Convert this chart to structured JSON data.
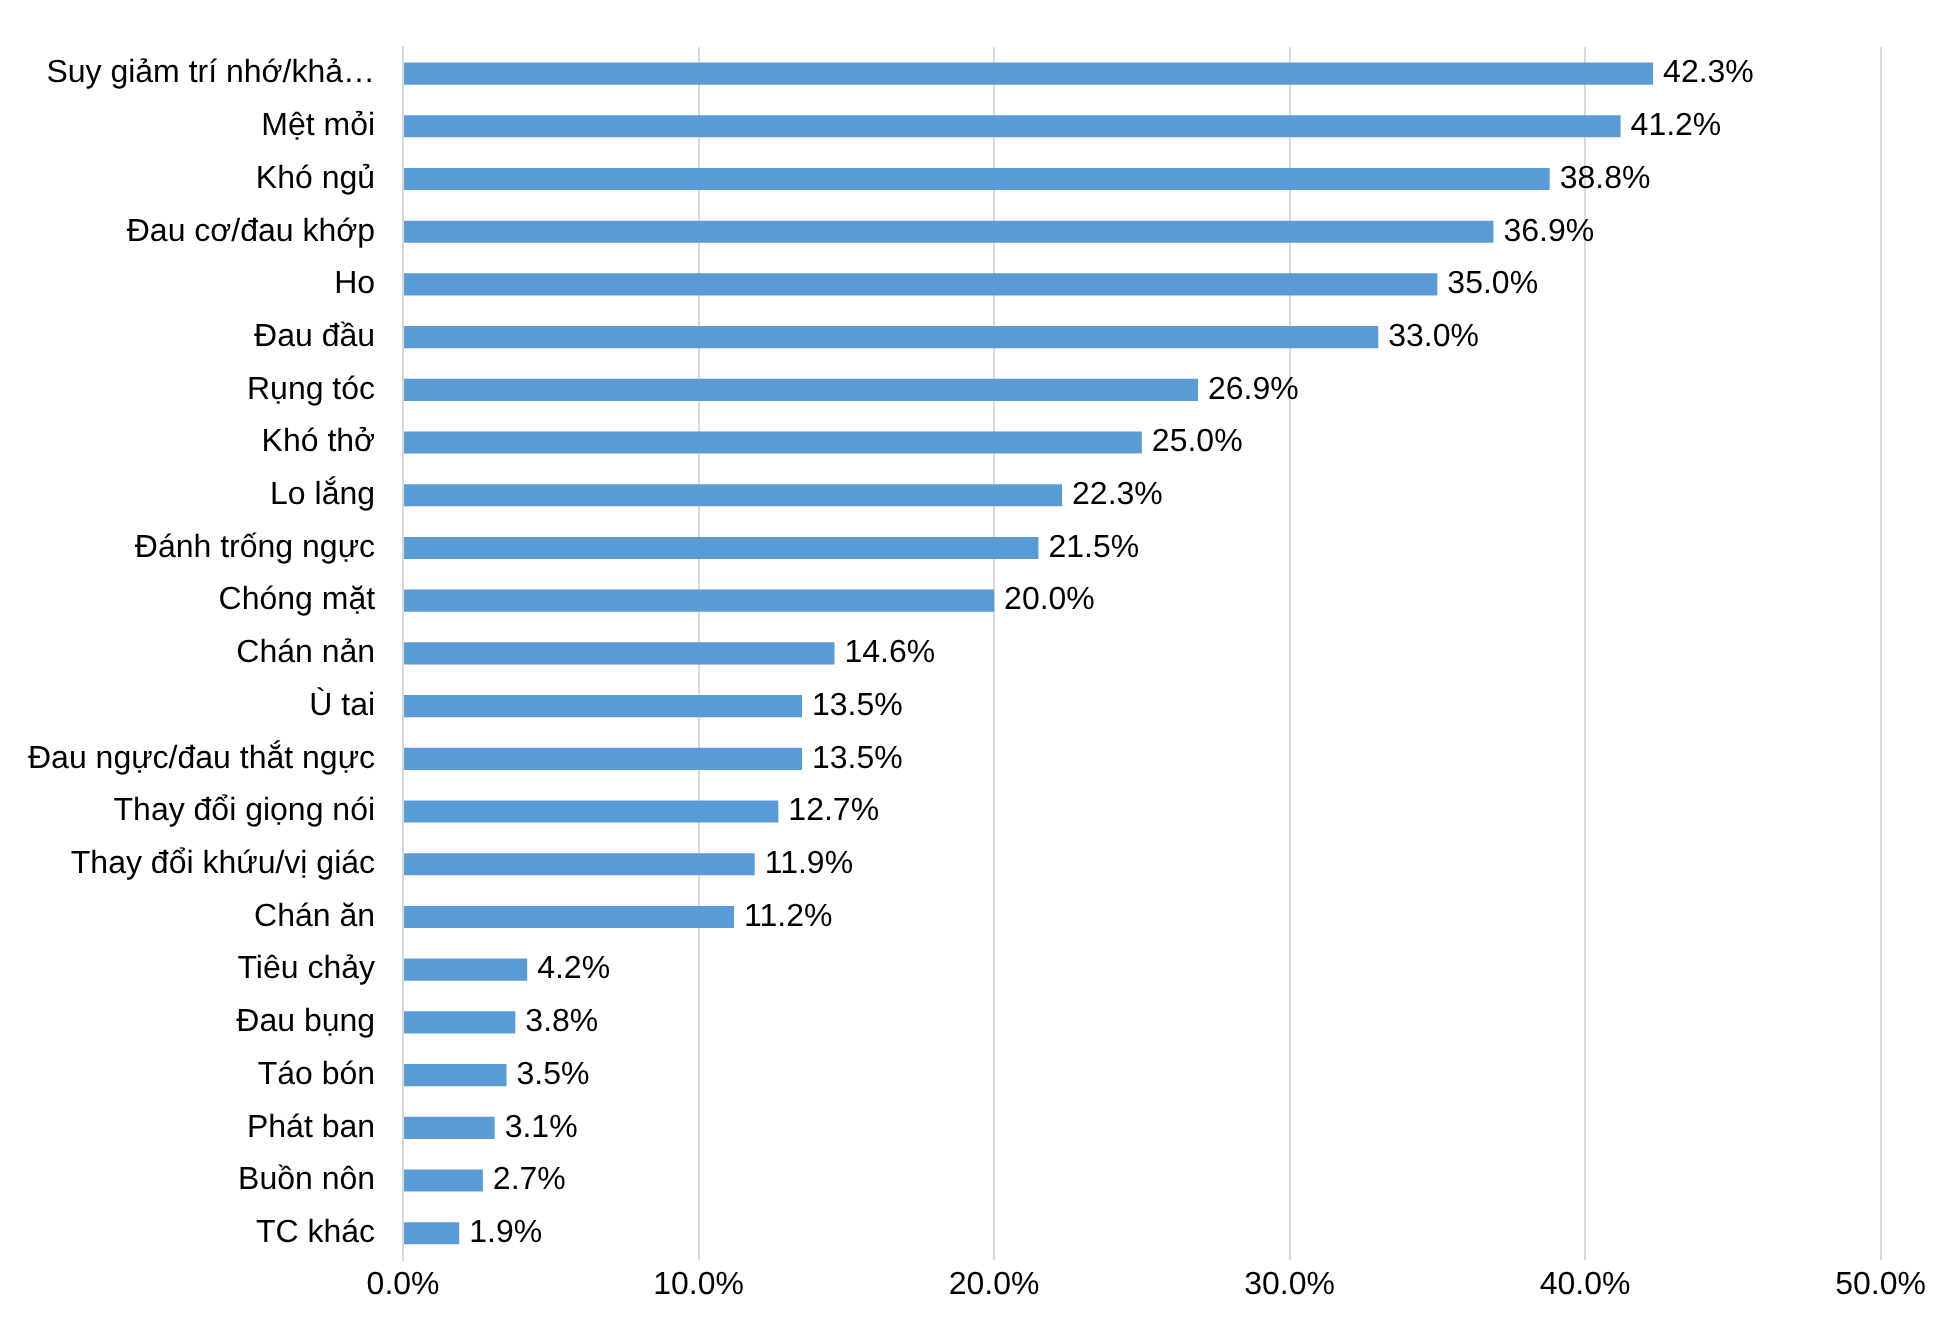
{
  "chart_data": {
    "type": "bar",
    "orientation": "horizontal",
    "categories": [
      "Suy giảm trí nhớ/khả…",
      "Mệt mỏi",
      "Khó ngủ",
      "Đau cơ/đau khớp",
      "Ho",
      "Đau đầu",
      "Rụng tóc",
      "Khó thở",
      "Lo lắng",
      "Đánh trống ngực",
      "Chóng mặt",
      "Chán nản",
      "Ù tai",
      "Đau ngực/đau thắt ngực",
      "Thay đổi giọng nói",
      "Thay đổi khứu/vị giác",
      "Chán ăn",
      "Tiêu chảy",
      "Đau bụng",
      "Táo bón",
      "Phát ban",
      "Buồn nôn",
      "TC khác"
    ],
    "values": [
      42.3,
      41.2,
      38.8,
      36.9,
      35.0,
      33.0,
      26.9,
      25.0,
      22.3,
      21.5,
      20.0,
      14.6,
      13.5,
      13.5,
      12.7,
      11.9,
      11.2,
      4.2,
      3.8,
      3.5,
      3.1,
      2.7,
      1.9
    ],
    "value_labels": [
      "42.3%",
      "41.2%",
      "38.8%",
      "36.9%",
      "35.0%",
      "33.0%",
      "26.9%",
      "25.0%",
      "22.3%",
      "21.5%",
      "20.0%",
      "14.6%",
      "13.5%",
      "13.5%",
      "12.7%",
      "11.9%",
      "11.2%",
      "4.2%",
      "3.8%",
      "3.5%",
      "3.1%",
      "2.7%",
      "1.9%"
    ],
    "color": "#5b9bd5",
    "xlim": [
      0,
      50
    ],
    "xticks": [
      {
        "value": 0,
        "label": "0.0%"
      },
      {
        "value": 10,
        "label": "10.0%"
      },
      {
        "value": 20,
        "label": "20.0%"
      },
      {
        "value": 30,
        "label": "30.0%"
      },
      {
        "value": 40,
        "label": "40.0%"
      },
      {
        "value": 50,
        "label": "50.0%"
      }
    ],
    "grid": "x",
    "legend": false
  }
}
